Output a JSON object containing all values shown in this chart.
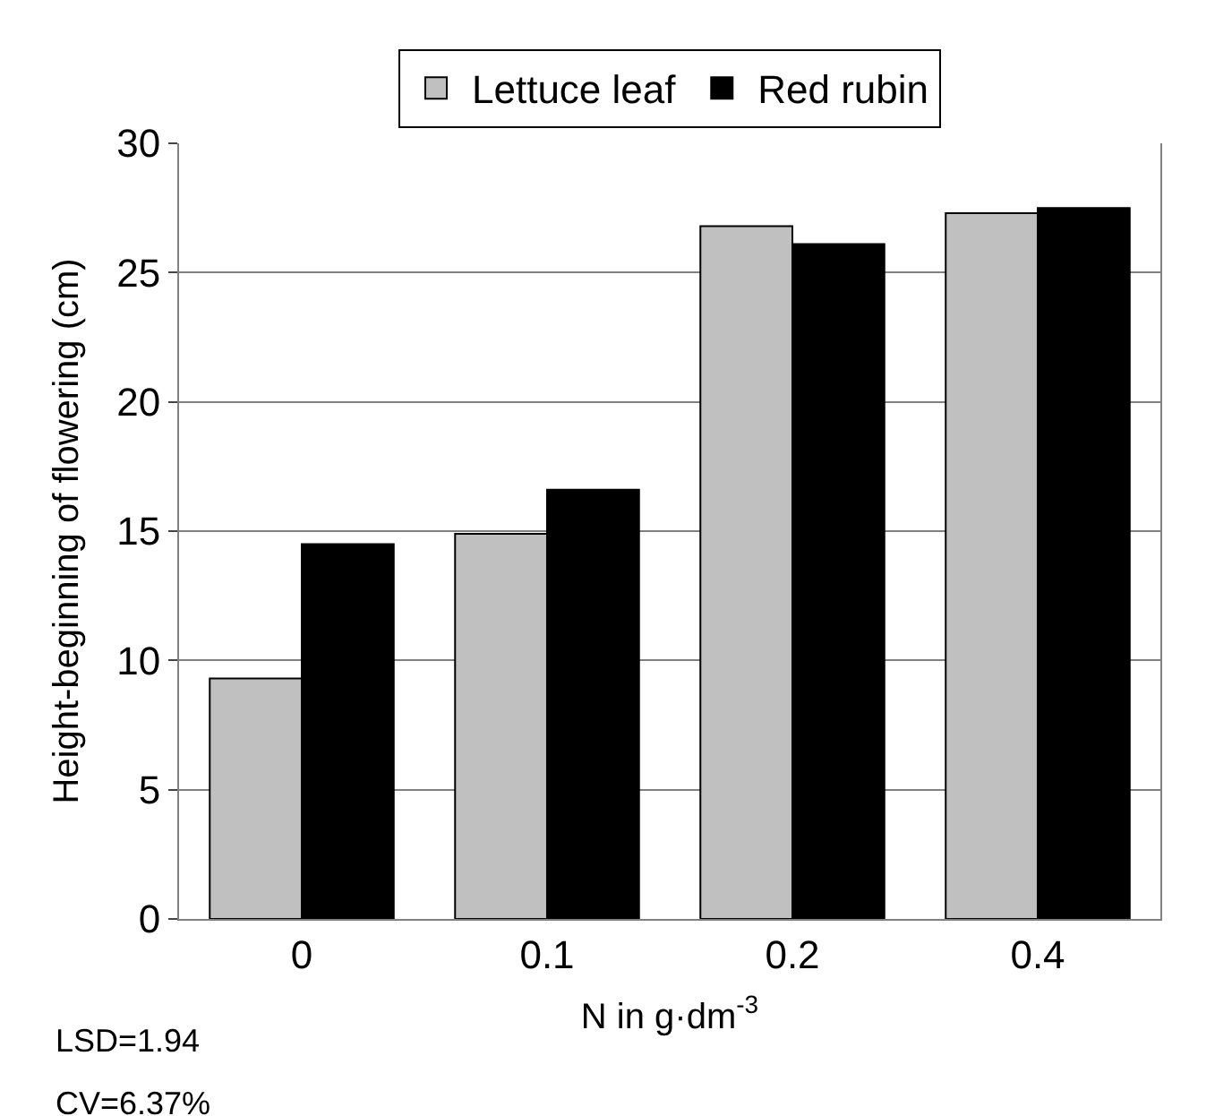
{
  "chart_data": {
    "type": "bar",
    "categories": [
      "0",
      "0.1",
      "0.2",
      "0.4"
    ],
    "series": [
      {
        "name": "Lettuce leaf",
        "color": "#c0c0c0",
        "values": [
          9.3,
          14.9,
          26.8,
          27.3
        ]
      },
      {
        "name": "Red rubin",
        "color": "#000000",
        "values": [
          14.5,
          16.6,
          26.1,
          27.5
        ]
      }
    ],
    "xlabel": "N in g·dm$^{-3}$",
    "ylabel": "Height-beginning of flowering (cm)",
    "ylim": [
      0,
      30
    ],
    "yticks": [
      0,
      5,
      10,
      15,
      20,
      25,
      30
    ],
    "grid": "y",
    "legend": "top",
    "annotations": [
      "LSD=1.94",
      "CV=6.37%"
    ]
  }
}
